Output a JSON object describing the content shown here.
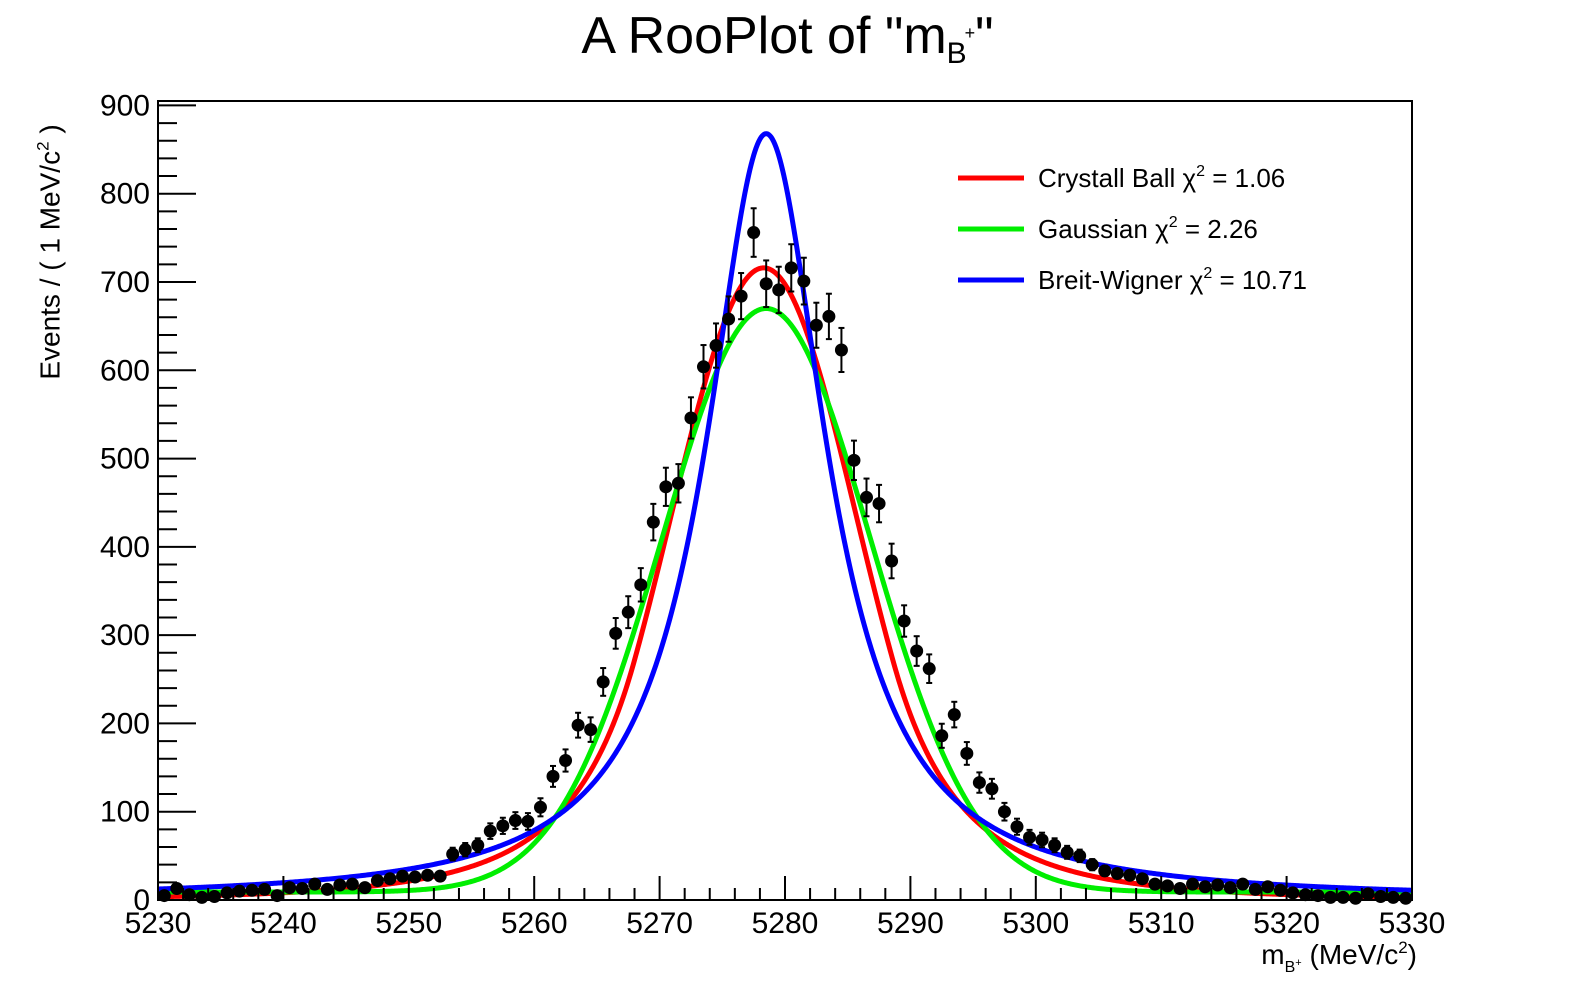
{
  "chart_data": {
    "type": "line",
    "title": "A RooPlot of \"m",
    "title_sub": "B",
    "title_sup": "+",
    "title_end": "\"",
    "ylabel": "Events / ( 1 MeV/c",
    "ylabel_sup": "2",
    "ylabel_end": " )",
    "xlabel_m": "m",
    "xlabel_sub": "B",
    "xlabel_subsup": "+",
    "xlabel_unit": " (MeV/c",
    "xlabel_unit_sup": "2",
    "xlabel_end": ")",
    "xlim": [
      5230,
      5330
    ],
    "ylim": [
      0,
      905
    ],
    "xticks": [
      "5230",
      "5240",
      "5250",
      "5260",
      "5270",
      "5280",
      "5290",
      "5300",
      "5310",
      "5320",
      "5330"
    ],
    "yticks": [
      "0",
      "100",
      "200",
      "300",
      "400",
      "500",
      "600",
      "700",
      "800",
      "900"
    ],
    "legend_position": "top-right",
    "series": [
      {
        "name": "Crystall Ball",
        "chi2": "1.06",
        "color": "#ff0000",
        "model": "crystalball",
        "mean": 5278.3,
        "sigma": 7.4,
        "peak": 716,
        "alpha": 1.4,
        "n": 4.5
      },
      {
        "name": "Gaussian",
        "chi2": "2.26",
        "color": "#00ee00",
        "model": "gaussian",
        "mean": 5278.5,
        "sigma": 8.3,
        "peak": 670,
        "baseline": 9
      },
      {
        "name": "Breit-Wigner",
        "chi2": "10.71",
        "color": "#0000ff",
        "model": "breitwigner",
        "mean": 5278.5,
        "gamma": 11.7,
        "peak": 868
      }
    ],
    "data_points": {
      "x": [
        5230.5,
        5231.5,
        5232.5,
        5233.5,
        5234.5,
        5235.5,
        5236.5,
        5237.5,
        5238.5,
        5239.5,
        5240.5,
        5241.5,
        5242.5,
        5243.5,
        5244.5,
        5245.5,
        5246.5,
        5247.5,
        5248.5,
        5249.5,
        5250.5,
        5251.5,
        5252.5,
        5253.5,
        5254.5,
        5255.5,
        5256.5,
        5257.5,
        5258.5,
        5259.5,
        5260.5,
        5261.5,
        5262.5,
        5263.5,
        5264.5,
        5265.5,
        5266.5,
        5267.5,
        5268.5,
        5269.5,
        5270.5,
        5271.5,
        5272.5,
        5273.5,
        5274.5,
        5275.5,
        5276.5,
        5277.5,
        5278.5,
        5279.5,
        5280.5,
        5281.5,
        5282.5,
        5283.5,
        5284.5,
        5285.5,
        5286.5,
        5287.5,
        5288.5,
        5289.5,
        5290.5,
        5291.5,
        5292.5,
        5293.5,
        5294.5,
        5295.5,
        5296.5,
        5297.5,
        5298.5,
        5299.5,
        5300.5,
        5301.5,
        5302.5,
        5303.5,
        5304.5,
        5305.5,
        5306.5,
        5307.5,
        5308.5,
        5309.5,
        5310.5,
        5311.5,
        5312.5,
        5313.5,
        5314.5,
        5315.5,
        5316.5,
        5317.5,
        5318.5,
        5319.5,
        5320.5,
        5321.5,
        5322.5,
        5323.5,
        5324.5,
        5325.5,
        5326.5,
        5327.5,
        5328.5,
        5329.5
      ],
      "y": [
        5,
        13,
        6,
        3,
        4,
        8,
        10,
        11,
        12,
        5,
        14,
        13,
        18,
        12,
        17,
        18,
        14,
        22,
        24,
        27,
        26,
        28,
        27,
        52,
        57,
        62,
        78,
        84,
        90,
        89,
        105,
        140,
        158,
        198,
        193,
        247,
        302,
        326,
        357,
        428,
        468,
        472,
        546,
        604,
        628,
        658,
        684,
        756,
        698,
        691,
        716,
        701,
        651,
        661,
        623,
        498,
        456,
        449,
        384,
        316,
        282,
        262,
        186,
        210,
        166,
        133,
        126,
        100,
        83,
        71,
        68,
        62,
        54,
        50,
        40,
        33,
        30,
        28,
        24,
        18,
        16,
        13,
        18,
        15,
        17,
        14,
        18,
        12,
        15,
        11,
        8,
        6,
        5,
        3,
        3,
        2,
        7,
        4,
        3,
        2
      ]
    }
  }
}
